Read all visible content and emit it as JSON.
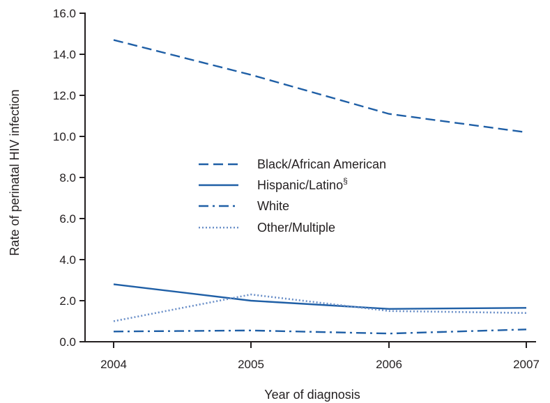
{
  "chart_data": {
    "type": "line",
    "xlabel": "Year of diagnosis",
    "ylabel": "Rate of perinatal HIV infection",
    "categories": [
      "2004",
      "2005",
      "2006",
      "2007"
    ],
    "ylim": [
      0,
      16
    ],
    "yticks": [
      "0.0",
      "2.0",
      "4.0",
      "6.0",
      "8.0",
      "10.0",
      "12.0",
      "14.0",
      "16.0"
    ],
    "grid": false,
    "legend_position": "center",
    "series": [
      {
        "name": "Black/African American",
        "name_sup": "",
        "values": [
          14.7,
          13.0,
          11.1,
          10.2
        ],
        "color": "#1f5fa6",
        "style": "dashed"
      },
      {
        "name": "Hispanic/Latino",
        "name_sup": "§",
        "values": [
          2.8,
          2.0,
          1.6,
          1.65
        ],
        "color": "#1f5fa6",
        "style": "solid"
      },
      {
        "name": "White",
        "name_sup": "",
        "values": [
          0.5,
          0.55,
          0.4,
          0.6
        ],
        "color": "#1f5fa6",
        "style": "dashdot"
      },
      {
        "name": "Other/Multiple",
        "name_sup": "",
        "values": [
          1.0,
          2.3,
          1.5,
          1.4
        ],
        "color": "#6a8fc8",
        "style": "dotted"
      }
    ]
  }
}
